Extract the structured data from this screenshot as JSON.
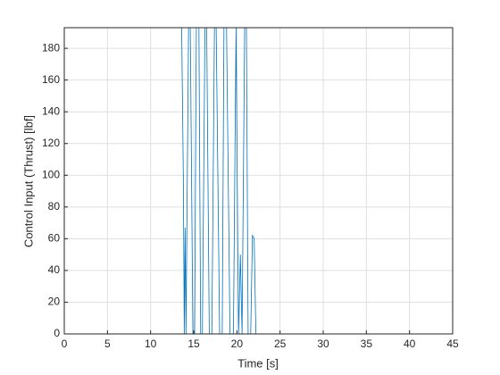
{
  "chart_data": {
    "type": "line",
    "xlabel": "Time [s]",
    "ylabel": "Control Input (Thrust) [lbf]",
    "xlim": [
      0,
      45
    ],
    "ylim": [
      0,
      193
    ],
    "xticks": [
      0,
      5,
      10,
      15,
      20,
      25,
      30,
      35,
      40,
      45
    ],
    "yticks": [
      0,
      20,
      40,
      60,
      80,
      100,
      120,
      140,
      160,
      180
    ],
    "grid": true,
    "series": [
      {
        "color": "#d95319",
        "x": [
          0,
          43
        ],
        "values": [
          193,
          193
        ]
      },
      {
        "color": "#d95319",
        "x": [
          0,
          43
        ],
        "values": [
          0,
          0
        ]
      },
      {
        "color": "#0072bd",
        "x": [
          0,
          13.6,
          13.8,
          13.9,
          14.0,
          14.1,
          14.4,
          14.6,
          14.9,
          15.1,
          15.3,
          15.6,
          15.8,
          16.0,
          16.3,
          16.5,
          16.8,
          17.1,
          17.4,
          17.6,
          18.0,
          18.3,
          18.5,
          18.8,
          19.2,
          19.6,
          19.9,
          20.1,
          20.2,
          20.4,
          20.6,
          20.9,
          21.1,
          21.3,
          21.6,
          21.8,
          22.0,
          22.2,
          43
        ],
        "values": [
          193,
          193,
          95,
          0,
          67,
          0,
          193,
          193,
          0,
          0,
          193,
          193,
          0,
          0,
          193,
          193,
          0,
          0,
          193,
          193,
          0,
          0,
          193,
          193,
          0,
          0,
          193,
          55,
          0,
          50,
          0,
          193,
          193,
          0,
          0,
          62,
          60,
          0,
          0
        ]
      }
    ]
  }
}
